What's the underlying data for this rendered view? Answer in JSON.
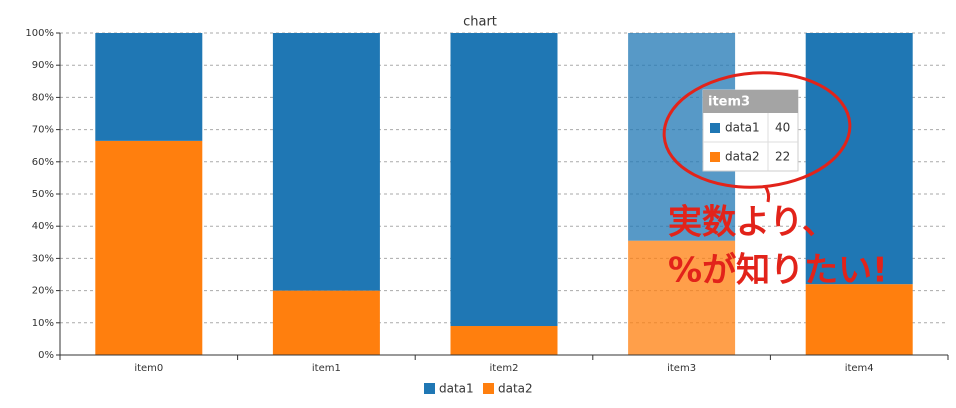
{
  "chart_data": {
    "type": "stacked_bar_percent",
    "title": "chart",
    "categories": [
      "item0",
      "item1",
      "item2",
      "item3",
      "item4"
    ],
    "series": [
      {
        "name": "data1",
        "color": "#1f77b4",
        "values": [
          33.5,
          80,
          91,
          64.5,
          78
        ]
      },
      {
        "name": "data2",
        "color": "#ff7f0e",
        "values": [
          66.5,
          20,
          9,
          35.5,
          22
        ]
      }
    ],
    "ylim": [
      0,
      100
    ],
    "yticks": [
      {
        "value": 0,
        "label": "0%"
      },
      {
        "value": 10,
        "label": "10%"
      },
      {
        "value": 20,
        "label": "20%"
      },
      {
        "value": 30,
        "label": "30%"
      },
      {
        "value": 40,
        "label": "40%"
      },
      {
        "value": 50,
        "label": "50%"
      },
      {
        "value": 60,
        "label": "60%"
      },
      {
        "value": 70,
        "label": "70%"
      },
      {
        "value": 80,
        "label": "80%"
      },
      {
        "value": 90,
        "label": "90%"
      },
      {
        "value": 100,
        "label": "100%"
      }
    ],
    "grid": true,
    "tooltip": {
      "title": "item3",
      "rows": [
        {
          "name": "data1",
          "value": 40
        },
        {
          "name": "data2",
          "value": 22
        }
      ]
    },
    "annotation": [
      "実数より、",
      "%が知りたい!"
    ]
  }
}
